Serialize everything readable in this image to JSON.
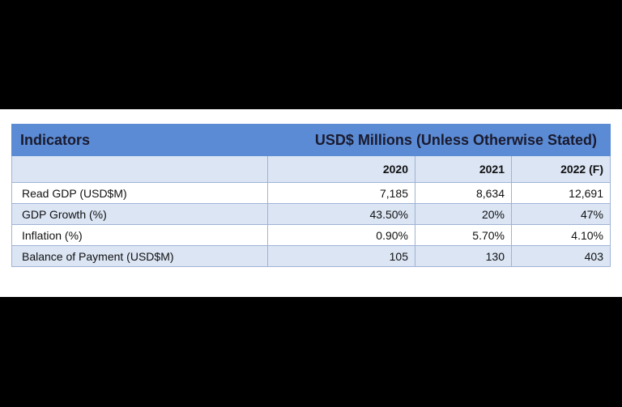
{
  "table": {
    "title_left": "Indicators",
    "title_right": "USD$ Millions (Unless Otherwise Stated)",
    "columns": [
      "2020",
      "2021",
      "2022 (F)"
    ],
    "rows": [
      {
        "label": "Read GDP (USD$M)",
        "values": [
          "7,185",
          "8,634",
          "12,691"
        ]
      },
      {
        "label": "GDP Growth (%)",
        "values": [
          "43.50%",
          "20%",
          "47%"
        ]
      },
      {
        "label": "Inflation (%)",
        "values": [
          "0.90%",
          "5.70%",
          "4.10%"
        ]
      },
      {
        "label": "Balance of Payment (USD$M)",
        "values": [
          "105",
          "130",
          "403"
        ]
      }
    ]
  },
  "colors": {
    "title_bar": "#5b8bd4",
    "shaded_row": "#dbe5f4",
    "border": "#9fb3d6",
    "letterbox": "#000000"
  }
}
